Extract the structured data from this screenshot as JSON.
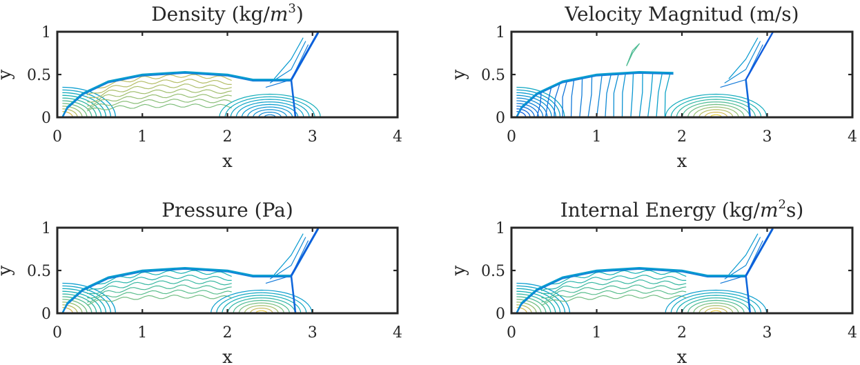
{
  "chart_data": [
    {
      "type": "contour",
      "title": "Density (kg/m³)",
      "title_parts": [
        "Density (kg/",
        "m",
        "3",
        ")"
      ],
      "xlabel": "x",
      "ylabel": "y",
      "xlim": [
        0,
        4
      ],
      "ylim": [
        0,
        1
      ],
      "xticks": [
        "0",
        "1",
        "2",
        "3",
        "4"
      ],
      "yticks": [
        "0",
        "0.5",
        "1"
      ],
      "colormap": "parula",
      "field": "density",
      "shock_front": [
        [
          0.06,
          0.0
        ],
        [
          0.12,
          0.12
        ],
        [
          0.3,
          0.28
        ],
        [
          0.6,
          0.42
        ],
        [
          1.0,
          0.5
        ],
        [
          1.5,
          0.53
        ],
        [
          2.0,
          0.5
        ],
        [
          2.3,
          0.44
        ],
        [
          2.75,
          0.44
        ],
        [
          3.07,
          1.0
        ]
      ],
      "mach_stem": [
        [
          2.75,
          0.44
        ],
        [
          2.8,
          0.0
        ]
      ]
    },
    {
      "type": "contour",
      "title": "Velocity Magnitud (m/s)",
      "title_parts": [
        "Velocity Magnitud (m/s)"
      ],
      "xlabel": "x",
      "ylabel": "y",
      "xlim": [
        0,
        4
      ],
      "ylim": [
        0,
        1
      ],
      "xticks": [
        "0",
        "1",
        "2",
        "3",
        "4"
      ],
      "yticks": [
        "0",
        "0.5",
        "1"
      ],
      "colormap": "parula",
      "field": "velocity",
      "shock_front": [
        [
          0.06,
          0.0
        ],
        [
          0.12,
          0.12
        ],
        [
          0.3,
          0.28
        ],
        [
          0.6,
          0.42
        ],
        [
          1.0,
          0.5
        ],
        [
          1.5,
          0.53
        ],
        [
          1.9,
          0.52
        ]
      ],
      "mach_stem": [
        [
          2.75,
          0.44
        ],
        [
          2.8,
          0.0
        ]
      ]
    },
    {
      "type": "contour",
      "title": "Pressure (Pa)",
      "title_parts": [
        "Pressure (Pa)"
      ],
      "xlabel": "x",
      "ylabel": "y",
      "xlim": [
        0,
        4
      ],
      "ylim": [
        0,
        1
      ],
      "xticks": [
        "0",
        "1",
        "2",
        "3",
        "4"
      ],
      "yticks": [
        "0",
        "0.5",
        "1"
      ],
      "colormap": "parula",
      "field": "pressure",
      "shock_front": [
        [
          0.06,
          0.0
        ],
        [
          0.12,
          0.12
        ],
        [
          0.3,
          0.28
        ],
        [
          0.6,
          0.42
        ],
        [
          1.0,
          0.5
        ],
        [
          1.5,
          0.53
        ],
        [
          2.0,
          0.5
        ],
        [
          2.3,
          0.44
        ],
        [
          2.75,
          0.44
        ],
        [
          3.07,
          1.0
        ]
      ],
      "mach_stem": [
        [
          2.75,
          0.44
        ],
        [
          2.8,
          0.0
        ]
      ]
    },
    {
      "type": "contour",
      "title": "Internal Energy (kg/m²s)",
      "title_parts": [
        "Internal Energy (kg/",
        "m",
        "2",
        "s)"
      ],
      "xlabel": "x",
      "ylabel": "y",
      "xlim": [
        0,
        4
      ],
      "ylim": [
        0,
        1
      ],
      "xticks": [
        "0",
        "1",
        "2",
        "3",
        "4"
      ],
      "yticks": [
        "0",
        "0.5",
        "1"
      ],
      "colormap": "parula",
      "field": "energy",
      "shock_front": [
        [
          0.06,
          0.0
        ],
        [
          0.12,
          0.12
        ],
        [
          0.3,
          0.28
        ],
        [
          0.6,
          0.42
        ],
        [
          1.0,
          0.5
        ],
        [
          1.5,
          0.53
        ],
        [
          2.0,
          0.5
        ],
        [
          2.3,
          0.44
        ],
        [
          2.75,
          0.44
        ],
        [
          3.07,
          1.0
        ]
      ],
      "mach_stem": [
        [
          2.75,
          0.44
        ],
        [
          2.8,
          0.0
        ]
      ]
    }
  ]
}
